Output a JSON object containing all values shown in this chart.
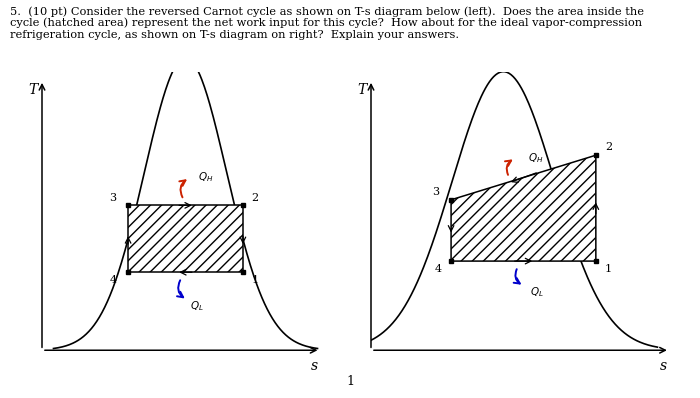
{
  "text_header_line1": "5.  (10 pt) Consider the reversed Carnot cycle as shown on T-s diagram below (left).  Does the area inside the",
  "text_header_line2": "cycle (hatched area) represent the net work input for this cycle?  How about for the ideal vapor-compression",
  "text_header_line3": "refrigeration cycle, as shown on T-s diagram on right?  Explain your answers.",
  "page_number": "1",
  "bg_color": "#ffffff",
  "hatch_pattern": "///",
  "arrow_color_QH": "#cc2200",
  "arrow_color_QL": "#0000cc",
  "font_size_header": 8.2,
  "font_size_labels": 8,
  "font_size_axis": 9
}
